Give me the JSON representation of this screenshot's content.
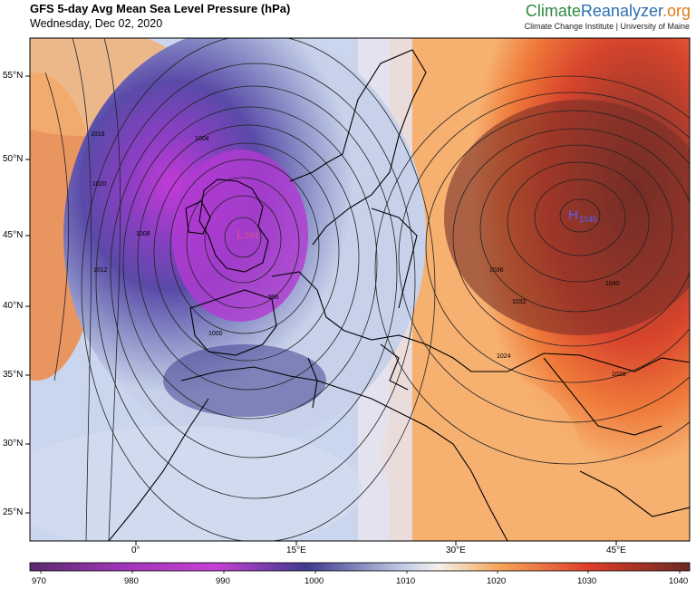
{
  "header": {
    "title": "GFS 5-day Avg Mean Sea Level Pressure (hPa)",
    "date": "Wednesday, Dec 02, 2020"
  },
  "logo": {
    "part1": "Climate",
    "part2": "Reanalyzer",
    "part3": ".org",
    "sub": "Climate Change Institute | University of Maine"
  },
  "lat_labels": [
    "55°N",
    "50°N",
    "45°N",
    "40°N",
    "35°N",
    "30°N",
    "25°N"
  ],
  "lon_labels": [
    "0°",
    "15°E",
    "30°E",
    "45°E"
  ],
  "colorbar": {
    "ticks": [
      "970",
      "980",
      "990",
      "1000",
      "1010",
      "1020",
      "1030",
      "1040"
    ]
  },
  "centers": {
    "high_letter": "H",
    "high_value": "1045",
    "low_letter": "L",
    "low_value": "994"
  },
  "contour_labels": [
    "1016",
    "1020",
    "1012",
    "1008",
    "1004",
    "1000",
    "996",
    "1032",
    "1036",
    "1040",
    "1028",
    "1024"
  ]
}
